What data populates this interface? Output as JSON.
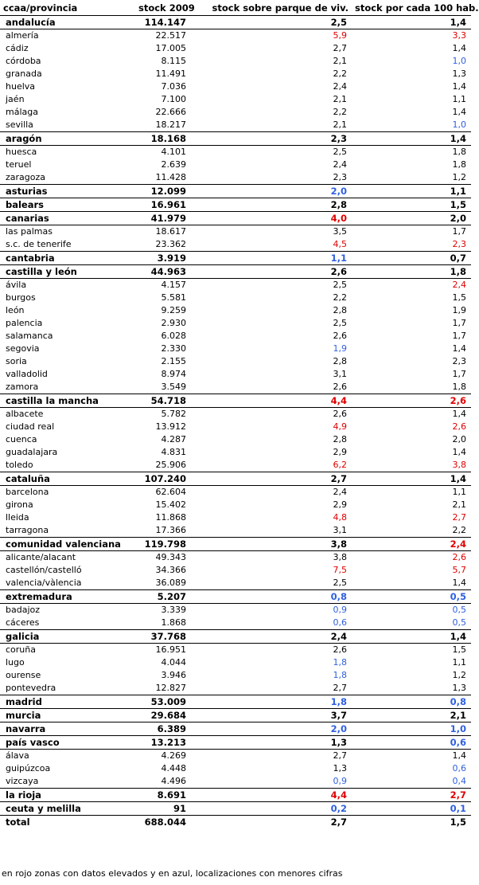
{
  "header": [
    "ccaa/provincia",
    "stock 2009",
    "stock sobre parque de viv.",
    "stock por cada 100 hab."
  ],
  "rows": [
    [
      "ca",
      "andalucía",
      "114.147",
      "2,5",
      "",
      "1,4",
      ""
    ],
    [
      "p",
      "almería",
      "22.517",
      "5,9",
      "hi",
      "3,3",
      "hi"
    ],
    [
      "p",
      "cádiz",
      "17.005",
      "2,7",
      "",
      "1,4",
      ""
    ],
    [
      "p",
      "córdoba",
      "8.115",
      "2,1",
      "",
      "1,0",
      "lo"
    ],
    [
      "p",
      "granada",
      "11.491",
      "2,2",
      "",
      "1,3",
      ""
    ],
    [
      "p",
      "huelva",
      "7.036",
      "2,4",
      "",
      "1,4",
      ""
    ],
    [
      "p",
      "jaén",
      "7.100",
      "2,1",
      "",
      "1,1",
      ""
    ],
    [
      "p",
      "málaga",
      "22.666",
      "2,2",
      "",
      "1,4",
      ""
    ],
    [
      "p",
      "sevilla",
      "18.217",
      "2,1",
      "",
      "1,0",
      "lo"
    ],
    [
      "ca",
      "aragón",
      "18.168",
      "2,3",
      "",
      "1,4",
      ""
    ],
    [
      "p",
      "huesca",
      "4.101",
      "2,5",
      "",
      "1,8",
      ""
    ],
    [
      "p",
      "teruel",
      "2.639",
      "2,4",
      "",
      "1,8",
      ""
    ],
    [
      "p",
      "zaragoza",
      "11.428",
      "2,3",
      "",
      "1,2",
      ""
    ],
    [
      "ca",
      "asturias",
      "12.099",
      "2,0",
      "lo",
      "1,1",
      ""
    ],
    [
      "ca",
      "balears",
      "16.961",
      "2,8",
      "",
      "1,5",
      ""
    ],
    [
      "ca",
      "canarias",
      "41.979",
      "4,0",
      "hi",
      "2,0",
      ""
    ],
    [
      "p",
      "las palmas",
      "18.617",
      "3,5",
      "",
      "1,7",
      ""
    ],
    [
      "p",
      "s.c. de tenerife",
      "23.362",
      "4,5",
      "hi",
      "2,3",
      "hi"
    ],
    [
      "ca",
      "cantabria",
      "3.919",
      "1,1",
      "lo",
      "0,7",
      ""
    ],
    [
      "ca",
      "castilla y león",
      "44.963",
      "2,6",
      "",
      "1,8",
      ""
    ],
    [
      "p",
      "ávila",
      "4.157",
      "2,5",
      "",
      "2,4",
      "hi"
    ],
    [
      "p",
      "burgos",
      "5.581",
      "2,2",
      "",
      "1,5",
      ""
    ],
    [
      "p",
      "león",
      "9.259",
      "2,8",
      "",
      "1,9",
      ""
    ],
    [
      "p",
      "palencia",
      "2.930",
      "2,5",
      "",
      "1,7",
      ""
    ],
    [
      "p",
      "salamanca",
      "6.028",
      "2,6",
      "",
      "1,7",
      ""
    ],
    [
      "p",
      "segovia",
      "2.330",
      "1,9",
      "lo",
      "1,4",
      ""
    ],
    [
      "p",
      "soria",
      "2.155",
      "2,8",
      "",
      "2,3",
      ""
    ],
    [
      "p",
      "valladolid",
      "8.974",
      "3,1",
      "",
      "1,7",
      ""
    ],
    [
      "p",
      "zamora",
      "3.549",
      "2,6",
      "",
      "1,8",
      ""
    ],
    [
      "ca",
      "castilla la mancha",
      "54.718",
      "4,4",
      "hi",
      "2,6",
      "hi"
    ],
    [
      "p",
      "albacete",
      "5.782",
      "2,6",
      "",
      "1,4",
      ""
    ],
    [
      "p",
      "ciudad real",
      "13.912",
      "4,9",
      "hi",
      "2,6",
      "hi"
    ],
    [
      "p",
      "cuenca",
      "4.287",
      "2,8",
      "",
      "2,0",
      ""
    ],
    [
      "p",
      "guadalajara",
      "4.831",
      "2,9",
      "",
      "1,4",
      ""
    ],
    [
      "p",
      "toledo",
      "25.906",
      "6,2",
      "hi",
      "3,8",
      "hi"
    ],
    [
      "ca",
      "cataluña",
      "107.240",
      "2,7",
      "",
      "1,4",
      ""
    ],
    [
      "p",
      "barcelona",
      "62.604",
      "2,4",
      "",
      "1,1",
      ""
    ],
    [
      "p",
      "girona",
      "15.402",
      "2,9",
      "",
      "2,1",
      ""
    ],
    [
      "p",
      "lleida",
      "11.868",
      "4,8",
      "hi",
      "2,7",
      "hi"
    ],
    [
      "p",
      "tarragona",
      "17.366",
      "3,1",
      "",
      "2,2",
      ""
    ],
    [
      "ca",
      "comunidad valenciana",
      "119.798",
      "3,8",
      "",
      "2,4",
      "hi"
    ],
    [
      "p",
      "alicante/alacant",
      "49.343",
      "3,8",
      "",
      "2,6",
      "hi"
    ],
    [
      "p",
      "castellón/castelló",
      "34.366",
      "7,5",
      "hi",
      "5,7",
      "hi"
    ],
    [
      "p",
      "valencia/vàlencia",
      "36.089",
      "2,5",
      "",
      "1,4",
      ""
    ],
    [
      "ca",
      "extremadura",
      "5.207",
      "0,8",
      "lo",
      "0,5",
      "lo"
    ],
    [
      "p",
      "badajoz",
      "3.339",
      "0,9",
      "lo",
      "0,5",
      "lo"
    ],
    [
      "p",
      "cáceres",
      "1.868",
      "0,6",
      "lo",
      "0,5",
      "lo"
    ],
    [
      "ca",
      "galicia",
      "37.768",
      "2,4",
      "",
      "1,4",
      ""
    ],
    [
      "p",
      "coruña",
      "16.951",
      "2,6",
      "",
      "1,5",
      ""
    ],
    [
      "p",
      "lugo",
      "4.044",
      "1,8",
      "lo",
      "1,1",
      ""
    ],
    [
      "p",
      "ourense",
      "3.946",
      "1,8",
      "lo",
      "1,2",
      ""
    ],
    [
      "p",
      "pontevedra",
      "12.827",
      "2,7",
      "",
      "1,3",
      ""
    ],
    [
      "ca",
      "madrid",
      "53.009",
      "1,8",
      "lo",
      "0,8",
      "lo"
    ],
    [
      "ca",
      "murcia",
      "29.684",
      "3,7",
      "",
      "2,1",
      ""
    ],
    [
      "ca",
      "navarra",
      "6.389",
      "2,0",
      "lo",
      "1,0",
      "lo"
    ],
    [
      "ca",
      "país vasco",
      "13.213",
      "1,3",
      "",
      "0,6",
      "lo"
    ],
    [
      "p",
      "álava",
      "4.269",
      "2,7",
      "",
      "1,4",
      ""
    ],
    [
      "p",
      "guipúzcoa",
      "4.448",
      "1,3",
      "",
      "0,6",
      "lo"
    ],
    [
      "p",
      "vizcaya",
      "4.496",
      "0,9",
      "lo",
      "0,4",
      "lo"
    ],
    [
      "ca",
      "la rioja",
      "8.691",
      "4,4",
      "hi",
      "2,7",
      "hi"
    ],
    [
      "ca",
      "ceuta y melilla",
      "91",
      "0,2",
      "lo",
      "0,1",
      "lo"
    ],
    [
      "tot",
      "total",
      "688.044",
      "2,7",
      "",
      "1,5",
      ""
    ]
  ],
  "colors": {
    "high": "#e00000",
    "low": "#3060e0"
  },
  "footnote": "en rojo zonas con datos elevados y en azul, localizaciones con menores cifras"
}
